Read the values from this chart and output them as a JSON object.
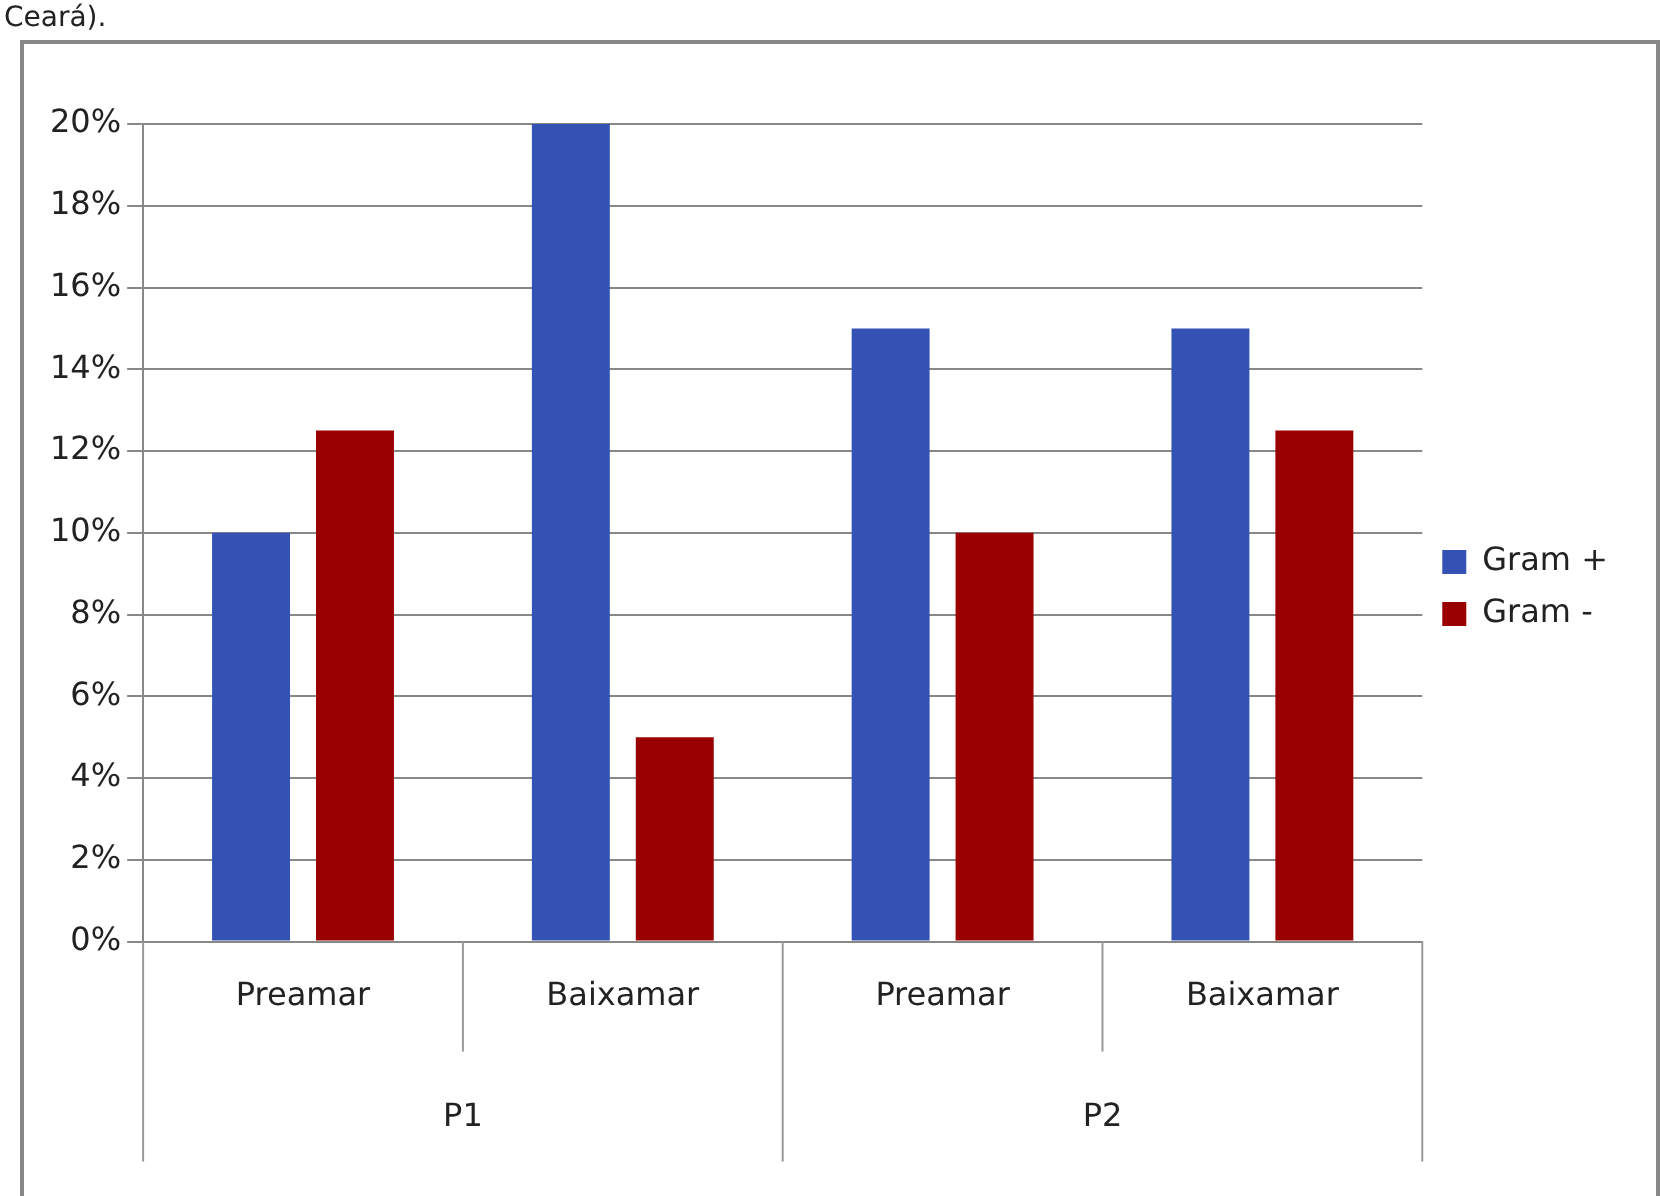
{
  "chart_data": {
    "type": "bar",
    "categories": [
      "Preamar",
      "Baixamar",
      "Preamar",
      "Baixamar"
    ],
    "series": [
      {
        "name": "Gram +",
        "color": "#3452b4",
        "values": [
          10,
          20,
          15,
          15
        ]
      },
      {
        "name": "Gram -",
        "color": "#9a0000",
        "values": [
          12.5,
          5,
          10,
          12.5
        ]
      }
    ],
    "ylim": [
      0,
      20
    ],
    "yticks": [
      {
        "value": 0,
        "label": "0%"
      },
      {
        "value": 2,
        "label": "2%"
      },
      {
        "value": 4,
        "label": "4%"
      },
      {
        "value": 6,
        "label": "6%"
      },
      {
        "value": 8,
        "label": "8%"
      },
      {
        "value": 10,
        "label": "10%"
      },
      {
        "value": 12,
        "label": "12%"
      },
      {
        "value": 14,
        "label": "14%"
      },
      {
        "value": 16,
        "label": "16%"
      },
      {
        "value": 18,
        "label": "18%"
      },
      {
        "value": 20,
        "label": "20%"
      }
    ],
    "grid": "y",
    "legend": "right",
    "annotations": [
      "Ceará).",
      "P1",
      "P2"
    ]
  }
}
